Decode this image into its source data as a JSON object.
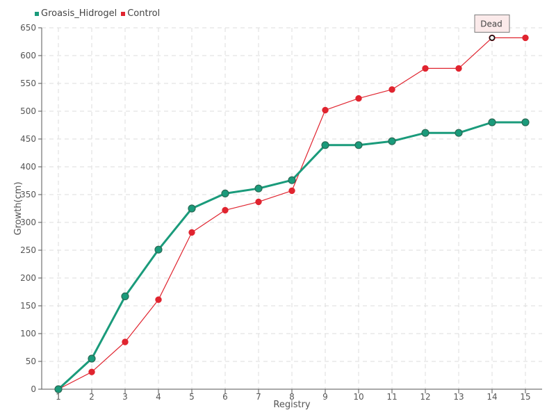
{
  "chart_data": {
    "type": "line",
    "xlabel": "Registry",
    "ylabel": "Growth(cm)",
    "categories": [
      "1",
      "2",
      "3",
      "4",
      "5",
      "6",
      "7",
      "8",
      "9",
      "10",
      "11",
      "12",
      "13",
      "14",
      "15"
    ],
    "ylim": [
      0,
      650
    ],
    "ytick_step": 50,
    "grid": true,
    "legend_position": "top-left",
    "series": [
      {
        "name": "Groasis_Hidrogel",
        "color": "#1a9b7b",
        "values": [
          0,
          55,
          167,
          251,
          325,
          352,
          361,
          376,
          439,
          439,
          446,
          461,
          461,
          480,
          480
        ]
      },
      {
        "name": "Control",
        "color": "#e0242f",
        "values": [
          0,
          31,
          85,
          161,
          282,
          322,
          337,
          357,
          502,
          523,
          539,
          577,
          577,
          632,
          632
        ]
      }
    ],
    "annotation": {
      "text": "Dead",
      "series": "Control",
      "category": "14"
    }
  }
}
